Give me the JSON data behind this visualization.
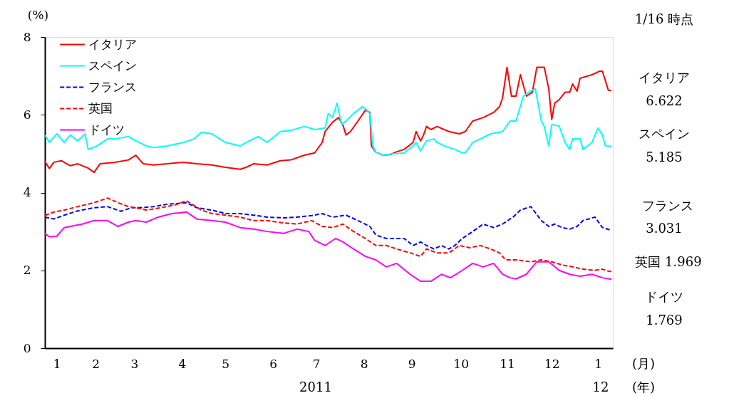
{
  "chart_data": {
    "type": "line",
    "ylabel": "(%)",
    "ylim": [
      0,
      8
    ],
    "yticks": [
      0,
      2,
      4,
      6,
      8
    ],
    "xlim": [
      "2011-01-01",
      "2012-01-17"
    ],
    "xticks": [
      {
        "value": "2011-01-09",
        "label": "1"
      },
      {
        "value": "2011-02-04",
        "label": "2"
      },
      {
        "value": "2011-03-02",
        "label": "3"
      },
      {
        "value": "2011-04-03",
        "label": "4"
      },
      {
        "value": "2011-05-02",
        "label": "5"
      },
      {
        "value": "2011-06-03",
        "label": "6"
      },
      {
        "value": "2011-07-02",
        "label": "7"
      },
      {
        "value": "2011-08-03",
        "label": "8"
      },
      {
        "value": "2011-09-04",
        "label": "9"
      },
      {
        "value": "2011-10-07",
        "label": "10"
      },
      {
        "value": "2011-11-07",
        "label": "11"
      },
      {
        "value": "2011-12-07",
        "label": "12"
      },
      {
        "value": "2012-01-07",
        "label": "1"
      }
    ],
    "legend": "top left",
    "annotations": [
      "1/16 時点",
      "イタリア",
      "6.622",
      "スペイン",
      "5.185",
      "フランス",
      "3.031",
      "英国 1.969",
      "ドイツ",
      "1.769",
      "2011",
      "12",
      "(月)",
      "(年)"
    ],
    "series": [
      {
        "name": "イタリア",
        "color": "#ff0000",
        "line_style": "solid",
        "x": [
          "2011-01-01",
          "2011-01-04",
          "2011-01-07",
          "2011-01-12",
          "2011-01-18",
          "2011-01-23",
          "2011-01-30",
          "2011-02-03",
          "2011-02-07",
          "2011-02-17",
          "2011-02-26",
          "2011-03-03",
          "2011-03-08",
          "2011-03-15",
          "2011-03-24",
          "2011-04-04",
          "2011-04-13",
          "2011-04-23",
          "2011-05-02",
          "2011-05-12",
          "2011-05-16",
          "2011-05-21",
          "2011-05-30",
          "2011-06-08",
          "2011-06-15",
          "2011-06-24",
          "2011-07-01",
          "2011-07-06",
          "2011-07-08",
          "2011-07-13",
          "2011-07-17",
          "2011-07-20",
          "2011-07-22",
          "2011-07-25",
          "2011-07-30",
          "2011-08-04",
          "2011-08-07",
          "2011-08-08",
          "2011-08-11",
          "2011-08-16",
          "2011-08-21",
          "2011-08-25",
          "2011-08-30",
          "2011-09-05",
          "2011-09-07",
          "2011-09-10",
          "2011-09-12",
          "2011-09-14",
          "2011-09-17",
          "2011-09-21",
          "2011-09-29",
          "2011-10-06",
          "2011-10-10",
          "2011-10-15",
          "2011-10-22",
          "2011-10-29",
          "2011-11-02",
          "2011-11-04",
          "2011-11-07",
          "2011-11-10",
          "2011-11-13",
          "2011-11-16",
          "2011-11-20",
          "2011-11-24",
          "2011-11-27",
          "2011-12-02",
          "2011-12-05",
          "2011-12-07",
          "2011-12-09",
          "2011-12-12",
          "2011-12-16",
          "2011-12-19",
          "2011-12-21",
          "2011-12-24",
          "2011-12-26",
          "2012-01-03",
          "2012-01-08",
          "2012-01-10",
          "2012-01-14",
          "2012-01-16"
        ],
        "values": [
          4.8,
          4.62,
          4.78,
          4.82,
          4.69,
          4.74,
          4.63,
          4.52,
          4.74,
          4.78,
          4.84,
          4.96,
          4.74,
          4.71,
          4.74,
          4.78,
          4.74,
          4.71,
          4.65,
          4.6,
          4.65,
          4.74,
          4.71,
          4.82,
          4.84,
          4.96,
          5.02,
          5.29,
          5.57,
          5.81,
          5.93,
          5.73,
          5.48,
          5.57,
          5.84,
          6.12,
          6.06,
          5.2,
          5.04,
          4.96,
          4.98,
          5.05,
          5.11,
          5.29,
          5.57,
          5.33,
          5.48,
          5.7,
          5.62,
          5.7,
          5.57,
          5.51,
          5.57,
          5.84,
          5.93,
          6.06,
          6.21,
          6.43,
          7.22,
          6.48,
          6.48,
          7.03,
          6.48,
          6.58,
          7.22,
          7.22,
          6.67,
          5.88,
          6.3,
          6.39,
          6.58,
          6.58,
          6.79,
          6.61,
          6.94,
          7.03,
          7.12,
          7.12,
          6.63,
          6.62
        ]
      },
      {
        "name": "スペイン",
        "color": "#00ffff",
        "line_style": "solid",
        "x": [
          "2011-01-01",
          "2011-01-04",
          "2011-01-09",
          "2011-01-14",
          "2011-01-18",
          "2011-01-23",
          "2011-01-28",
          "2011-01-30",
          "2011-02-05",
          "2011-02-12",
          "2011-02-17",
          "2011-02-26",
          "2011-03-03",
          "2011-03-10",
          "2011-03-15",
          "2011-03-24",
          "2011-04-04",
          "2011-04-11",
          "2011-04-16",
          "2011-04-23",
          "2011-05-02",
          "2011-05-12",
          "2011-05-16",
          "2011-05-24",
          "2011-05-30",
          "2011-06-08",
          "2011-06-15",
          "2011-06-24",
          "2011-07-01",
          "2011-07-08",
          "2011-07-10",
          "2011-07-13",
          "2011-07-16",
          "2011-07-19",
          "2011-07-22",
          "2011-07-27",
          "2011-08-02",
          "2011-08-05",
          "2011-08-07",
          "2011-08-09",
          "2011-08-11",
          "2011-08-16",
          "2011-08-23",
          "2011-08-30",
          "2011-09-05",
          "2011-09-07",
          "2011-09-10",
          "2011-09-14",
          "2011-09-19",
          "2011-09-21",
          "2011-09-26",
          "2011-10-03",
          "2011-10-08",
          "2011-10-10",
          "2011-10-15",
          "2011-10-20",
          "2011-10-27",
          "2011-11-04",
          "2011-11-09",
          "2011-11-13",
          "2011-11-18",
          "2011-11-23",
          "2011-11-26",
          "2011-11-30",
          "2011-12-02",
          "2011-12-05",
          "2011-12-07",
          "2011-12-12",
          "2011-12-16",
          "2011-12-19",
          "2011-12-21",
          "2011-12-26",
          "2011-12-28",
          "2012-01-03",
          "2012-01-07",
          "2012-01-10",
          "2012-01-12",
          "2012-01-16"
        ],
        "values": [
          5.48,
          5.29,
          5.51,
          5.29,
          5.48,
          5.33,
          5.51,
          5.11,
          5.2,
          5.38,
          5.38,
          5.44,
          5.33,
          5.2,
          5.16,
          5.2,
          5.29,
          5.38,
          5.55,
          5.51,
          5.29,
          5.2,
          5.29,
          5.44,
          5.29,
          5.57,
          5.6,
          5.7,
          5.62,
          5.66,
          6.03,
          5.93,
          6.3,
          5.75,
          5.84,
          6.03,
          6.21,
          6.12,
          6.03,
          5.2,
          5.04,
          4.96,
          5.0,
          5.02,
          5.2,
          5.29,
          5.07,
          5.33,
          5.38,
          5.29,
          5.2,
          5.11,
          5.02,
          5.02,
          5.29,
          5.38,
          5.51,
          5.57,
          5.84,
          5.84,
          6.48,
          6.61,
          6.67,
          5.84,
          5.7,
          5.2,
          5.75,
          5.71,
          5.29,
          5.11,
          5.38,
          5.38,
          5.11,
          5.29,
          5.66,
          5.48,
          5.2,
          5.19
        ]
      },
      {
        "name": "フランス",
        "color": "#0000ff",
        "line_style": "dashed",
        "x": [
          "2011-01-01",
          "2011-01-07",
          "2011-01-14",
          "2011-01-23",
          "2011-02-03",
          "2011-02-12",
          "2011-02-21",
          "2011-02-28",
          "2011-03-05",
          "2011-03-15",
          "2011-03-24",
          "2011-04-06",
          "2011-04-13",
          "2011-04-23",
          "2011-05-02",
          "2011-05-12",
          "2011-05-21",
          "2011-05-30",
          "2011-06-10",
          "2011-06-19",
          "2011-06-29",
          "2011-07-06",
          "2011-07-13",
          "2011-07-22",
          "2011-07-30",
          "2011-08-07",
          "2011-08-11",
          "2011-08-18",
          "2011-08-25",
          "2011-08-30",
          "2011-09-05",
          "2011-09-10",
          "2011-09-14",
          "2011-09-19",
          "2011-09-24",
          "2011-09-29",
          "2011-10-03",
          "2011-10-08",
          "2011-10-15",
          "2011-10-22",
          "2011-10-29",
          "2011-11-04",
          "2011-11-11",
          "2011-11-16",
          "2011-11-23",
          "2011-11-30",
          "2011-12-05",
          "2011-12-09",
          "2011-12-14",
          "2011-12-19",
          "2011-12-24",
          "2011-12-28",
          "2012-01-05",
          "2012-01-10",
          "2012-01-16"
        ],
        "values": [
          3.37,
          3.32,
          3.42,
          3.53,
          3.61,
          3.64,
          3.52,
          3.61,
          3.61,
          3.64,
          3.7,
          3.74,
          3.61,
          3.55,
          3.46,
          3.46,
          3.42,
          3.37,
          3.35,
          3.37,
          3.41,
          3.46,
          3.37,
          3.42,
          3.28,
          3.13,
          2.91,
          2.82,
          2.82,
          2.82,
          2.64,
          2.73,
          2.64,
          2.55,
          2.64,
          2.55,
          2.64,
          2.82,
          3.0,
          3.19,
          3.1,
          3.19,
          3.37,
          3.55,
          3.64,
          3.28,
          3.13,
          3.19,
          3.1,
          3.06,
          3.13,
          3.28,
          3.37,
          3.1,
          3.03
        ]
      },
      {
        "name": "英国",
        "color": "#ff0000",
        "line_style": "dashed",
        "x": [
          "2011-01-01",
          "2011-01-07",
          "2011-01-14",
          "2011-01-23",
          "2011-02-03",
          "2011-02-12",
          "2011-02-19",
          "2011-02-26",
          "2011-03-03",
          "2011-03-10",
          "2011-03-20",
          "2011-03-29",
          "2011-04-06",
          "2011-04-16",
          "2011-04-23",
          "2011-05-02",
          "2011-05-12",
          "2011-05-21",
          "2011-05-30",
          "2011-06-10",
          "2011-06-19",
          "2011-06-29",
          "2011-07-06",
          "2011-07-13",
          "2011-07-20",
          "2011-07-27",
          "2011-08-04",
          "2011-08-11",
          "2011-08-18",
          "2011-08-25",
          "2011-09-03",
          "2011-09-10",
          "2011-09-14",
          "2011-09-21",
          "2011-09-29",
          "2011-10-06",
          "2011-10-13",
          "2011-10-20",
          "2011-10-27",
          "2011-11-02",
          "2011-11-06",
          "2011-11-13",
          "2011-11-23",
          "2011-11-30",
          "2011-12-07",
          "2011-12-14",
          "2011-12-21",
          "2011-12-28",
          "2012-01-05",
          "2012-01-10",
          "2012-01-14",
          "2012-01-16"
        ],
        "values": [
          3.41,
          3.5,
          3.55,
          3.64,
          3.74,
          3.86,
          3.74,
          3.64,
          3.61,
          3.55,
          3.61,
          3.68,
          3.79,
          3.55,
          3.46,
          3.42,
          3.37,
          3.28,
          3.28,
          3.22,
          3.19,
          3.28,
          3.13,
          3.1,
          3.19,
          3.0,
          2.82,
          2.64,
          2.64,
          2.55,
          2.45,
          2.36,
          2.55,
          2.45,
          2.45,
          2.64,
          2.58,
          2.64,
          2.55,
          2.45,
          2.27,
          2.27,
          2.22,
          2.27,
          2.22,
          2.14,
          2.09,
          2.03,
          2.0,
          2.03,
          1.98,
          1.97
        ]
      },
      {
        "name": "ドイツ",
        "color": "#ff00ff",
        "line_style": "solid",
        "x": [
          "2011-01-01",
          "2011-01-04",
          "2011-01-09",
          "2011-01-14",
          "2011-01-18",
          "2011-01-26",
          "2011-02-03",
          "2011-02-12",
          "2011-02-19",
          "2011-02-26",
          "2011-03-03",
          "2011-03-10",
          "2011-03-18",
          "2011-03-27",
          "2011-04-06",
          "2011-04-13",
          "2011-04-23",
          "2011-05-02",
          "2011-05-12",
          "2011-05-21",
          "2011-05-30",
          "2011-06-10",
          "2011-06-19",
          "2011-06-27",
          "2011-07-01",
          "2011-07-08",
          "2011-07-15",
          "2011-07-20",
          "2011-07-27",
          "2011-08-04",
          "2011-08-11",
          "2011-08-18",
          "2011-08-25",
          "2011-09-03",
          "2011-09-10",
          "2011-09-17",
          "2011-09-24",
          "2011-09-30",
          "2011-10-08",
          "2011-10-15",
          "2011-10-22",
          "2011-10-29",
          "2011-11-04",
          "2011-11-09",
          "2011-11-13",
          "2011-11-20",
          "2011-11-27",
          "2011-12-05",
          "2011-12-12",
          "2011-12-19",
          "2011-12-26",
          "2012-01-03",
          "2012-01-10",
          "2012-01-16"
        ],
        "values": [
          2.95,
          2.86,
          2.88,
          3.1,
          3.13,
          3.19,
          3.28,
          3.28,
          3.13,
          3.24,
          3.28,
          3.24,
          3.37,
          3.46,
          3.5,
          3.32,
          3.28,
          3.24,
          3.1,
          3.06,
          3.0,
          2.95,
          3.06,
          3.0,
          2.77,
          2.64,
          2.82,
          2.73,
          2.55,
          2.36,
          2.27,
          2.09,
          2.18,
          1.9,
          1.72,
          1.72,
          1.9,
          1.81,
          2.0,
          2.18,
          2.09,
          2.18,
          1.9,
          1.81,
          1.78,
          1.9,
          2.22,
          2.22,
          2.0,
          1.9,
          1.85,
          1.9,
          1.81,
          1.77
        ]
      }
    ]
  }
}
